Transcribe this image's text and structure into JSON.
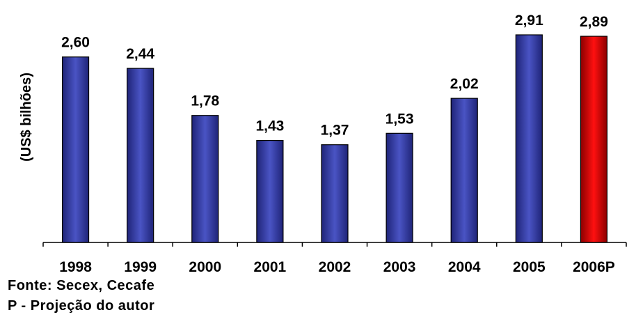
{
  "chart_data": {
    "type": "bar",
    "title": "",
    "xlabel": "",
    "ylabel": "(US$ bilhões)",
    "categories": [
      "1998",
      "1999",
      "2000",
      "2001",
      "2002",
      "2003",
      "2004",
      "2005",
      "2006P"
    ],
    "values": [
      2.6,
      2.44,
      1.78,
      1.43,
      1.37,
      1.53,
      2.02,
      2.91,
      2.89
    ],
    "value_labels": [
      "2,60",
      "2,44",
      "1,78",
      "1,43",
      "1,37",
      "1,53",
      "2,02",
      "2,91",
      "2,89"
    ],
    "ylim": [
      0,
      2.91
    ],
    "grid": false,
    "legend": "none",
    "colors": {
      "regular": "#2E3192",
      "regular_light": "#4A54C4",
      "projection": "#FF0000",
      "projection_dark": "#8B0000"
    },
    "highlight_index": 8
  },
  "notes": {
    "source": "Fonte: Secex, Cecafe",
    "projection": "P - Projeção do autor"
  }
}
